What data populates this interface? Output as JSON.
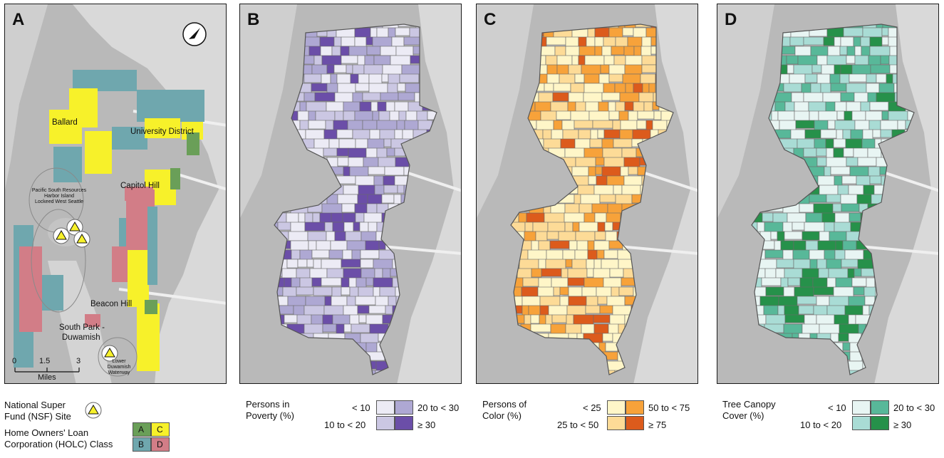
{
  "panels": {
    "a": {
      "label": "A",
      "places": [
        "Ballard",
        "University District",
        "Capitol Hill",
        "Beacon Hill",
        "South Park -",
        "Duwamish"
      ],
      "superfund_cluster": [
        "Pacific South Resources",
        "Harbor Island",
        "Lockeed West Seattle"
      ],
      "superfund_south": [
        "Lower",
        "Duwamish",
        "Waterway"
      ],
      "scale": {
        "ticks": [
          "0",
          "1.5",
          "3"
        ],
        "unit": "Miles"
      }
    },
    "b": {
      "label": "B"
    },
    "c": {
      "label": "C"
    },
    "d": {
      "label": "D"
    }
  },
  "legends": {
    "a": {
      "nsf_line1": "National Super",
      "nsf_line2": "Fund (NSF) Site",
      "holc_line1": "Home Owners' Loan",
      "holc_line2": "Corporation (HOLC) Class",
      "classes": [
        "A",
        "C",
        "B",
        "D"
      ]
    },
    "b": {
      "title_line1": "Persons in",
      "title_line2": "Poverty (%)",
      "bins": [
        "< 10",
        "20 to < 30",
        "10 to < 20",
        "≥ 30"
      ]
    },
    "c": {
      "title_line1": "Persons of",
      "title_line2": "Color (%)",
      "bins": [
        "< 25",
        "50 to < 75",
        "25 to < 50",
        "≥ 75"
      ]
    },
    "d": {
      "title_line1": "Tree Canopy",
      "title_line2": "Cover (%)",
      "bins": [
        "< 10",
        "20 to < 30",
        "10 to < 20",
        "≥ 30"
      ]
    }
  },
  "colors": {
    "holc": {
      "A": "#6a9f58",
      "B": "#6fa7ae",
      "C": "#f7f12a",
      "D": "#d27d87"
    },
    "poverty": [
      "#ecebf5",
      "#aea8d3",
      "#cbc7e3",
      "#6b4ea8"
    ],
    "color": [
      "#fff6c8",
      "#f7a23a",
      "#fddb97",
      "#dc5b1c"
    ],
    "canopy": [
      "#e8f5f3",
      "#58b899",
      "#a9dcd5",
      "#26914a"
    ]
  }
}
